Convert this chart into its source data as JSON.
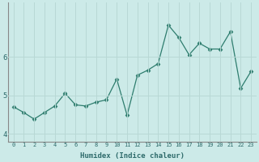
{
  "x_vals": [
    0,
    1,
    2,
    3,
    4,
    5,
    6,
    7,
    8,
    9,
    10,
    11,
    12,
    13,
    14,
    15,
    16,
    17,
    18,
    19,
    20,
    21,
    22,
    23
  ],
  "y_vals": [
    4.7,
    4.55,
    4.38,
    4.55,
    4.72,
    5.05,
    4.75,
    4.72,
    4.82,
    4.88,
    5.42,
    4.48,
    5.52,
    5.65,
    5.82,
    6.82,
    6.5,
    6.05,
    6.35,
    6.2,
    6.2,
    6.65,
    5.18,
    5.62
  ],
  "line_color": "#2e7d6e",
  "marker": "D",
  "marker_size": 2.5,
  "bg_color": "#cceae8",
  "grid_color": "#b8d8d5",
  "xlabel": "Humidex (Indice chaleur)",
  "ylim": [
    3.8,
    7.4
  ],
  "xlim": [
    -0.5,
    23.5
  ],
  "yticks": [
    4,
    5,
    6
  ],
  "xticks": [
    0,
    1,
    2,
    3,
    4,
    5,
    6,
    7,
    8,
    9,
    10,
    11,
    12,
    13,
    14,
    15,
    16,
    17,
    18,
    19,
    20,
    21,
    22,
    23
  ]
}
